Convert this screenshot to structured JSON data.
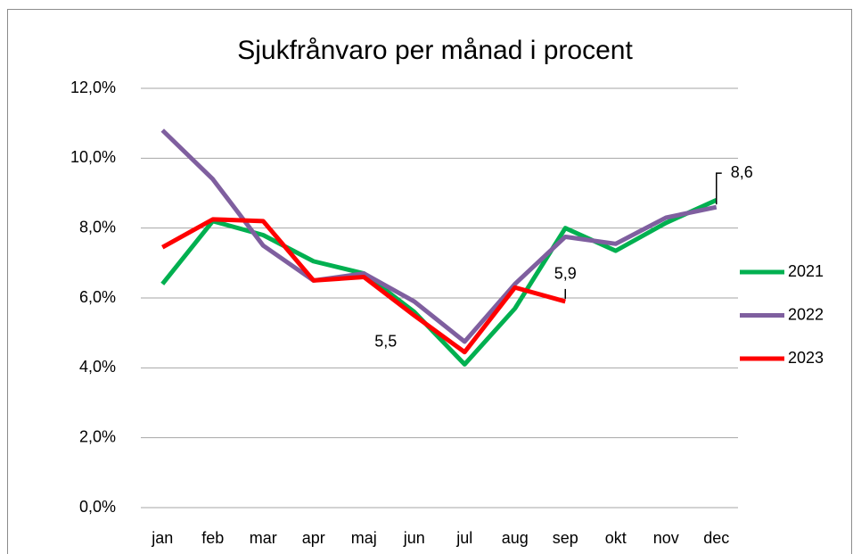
{
  "chart_data": {
    "type": "line",
    "title": "Sjukfrånvaro per månad i procent",
    "categories": [
      "jan",
      "feb",
      "mar",
      "apr",
      "maj",
      "jun",
      "jul",
      "aug",
      "sep",
      "okt",
      "nov",
      "dec"
    ],
    "series": [
      {
        "name": "2021",
        "color": "#00b050",
        "values": [
          6.4,
          8.2,
          7.8,
          7.05,
          6.7,
          5.6,
          4.1,
          5.7,
          8.0,
          7.35,
          8.15,
          8.8
        ]
      },
      {
        "name": "2022",
        "color": "#7f5f9f",
        "values": [
          10.8,
          9.4,
          7.5,
          6.5,
          6.7,
          5.9,
          4.75,
          6.4,
          7.75,
          7.55,
          8.3,
          8.6
        ],
        "value_labels": [
          null,
          null,
          null,
          null,
          null,
          null,
          null,
          null,
          null,
          null,
          null,
          "8,6"
        ]
      },
      {
        "name": "2023",
        "color": "#ff0000",
        "values": [
          7.45,
          8.25,
          8.2,
          6.5,
          6.6,
          5.5,
          4.45,
          6.3,
          5.9,
          null,
          null,
          null
        ],
        "value_labels": [
          null,
          null,
          null,
          null,
          null,
          "5,5",
          null,
          null,
          "5,9",
          null,
          null,
          null
        ]
      }
    ],
    "ylim": [
      0,
      12
    ],
    "yticks": [
      {
        "value": 0,
        "label": "0,0%"
      },
      {
        "value": 2,
        "label": "2,0%"
      },
      {
        "value": 4,
        "label": "4,0%"
      },
      {
        "value": 6,
        "label": "6,0%"
      },
      {
        "value": 8,
        "label": "8,0%"
      },
      {
        "value": 10,
        "label": "10,0%"
      },
      {
        "value": 12,
        "label": "12,0%"
      }
    ],
    "grid": true,
    "legend": "right"
  }
}
